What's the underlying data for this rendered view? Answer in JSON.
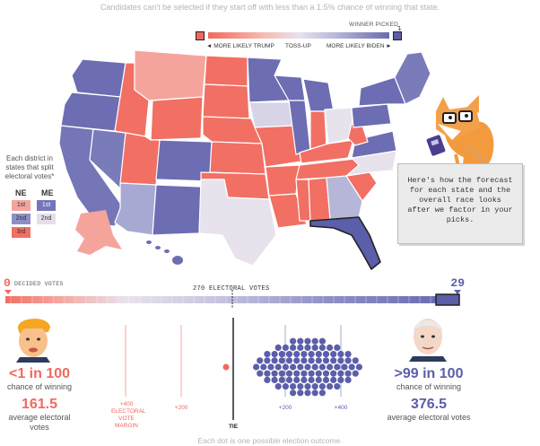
{
  "header": {
    "note": "Candidates can't be selected if they start off with less than a 1.5% chance of winning that state."
  },
  "legend": {
    "winner_picked": "WINNER PICKED",
    "more_likely_trump": "◄ MORE LIKELY TRUMP",
    "toss_up": "TOSS-UP",
    "more_likely_biden": "MORE LIKELY BIDEN ►",
    "colors": {
      "trump": "#f0695f",
      "biden": "#5b5ea8",
      "toss_up": "#e8e2ec"
    }
  },
  "districts": {
    "note": "Each district in states that split electoral votes*",
    "ne": {
      "title": "NE",
      "cells": [
        "1st",
        "2nd",
        "3rd"
      ]
    },
    "me": {
      "title": "ME",
      "cells": [
        "1st",
        "2nd"
      ]
    }
  },
  "callout": {
    "text": "Here's how the forecast for each state and the overall race looks after we factor in your picks."
  },
  "decided_votes": {
    "trump_count": "0",
    "label": "DECIDED VOTES",
    "biden_count": "29",
    "center_label": "270 ELECTORAL VOTES"
  },
  "trump": {
    "chance": "<1 in 100",
    "chance_label": "chance of winning",
    "avg_ev": "161.5",
    "avg_ev_label": "average electoral votes"
  },
  "biden": {
    "chance": ">99 in 100",
    "chance_label": "chance of winning",
    "avg_ev": "376.5",
    "avg_ev_label": "average electoral votes"
  },
  "margin_axis": {
    "trump_400": "+400",
    "trump_caption": "ELECTORAL VOTE MARGIN",
    "trump_200": "+200",
    "tie": "TIE",
    "biden_200": "+200",
    "biden_400": "+400"
  },
  "footer": {
    "note": "Each dot is one possible election outcome."
  }
}
